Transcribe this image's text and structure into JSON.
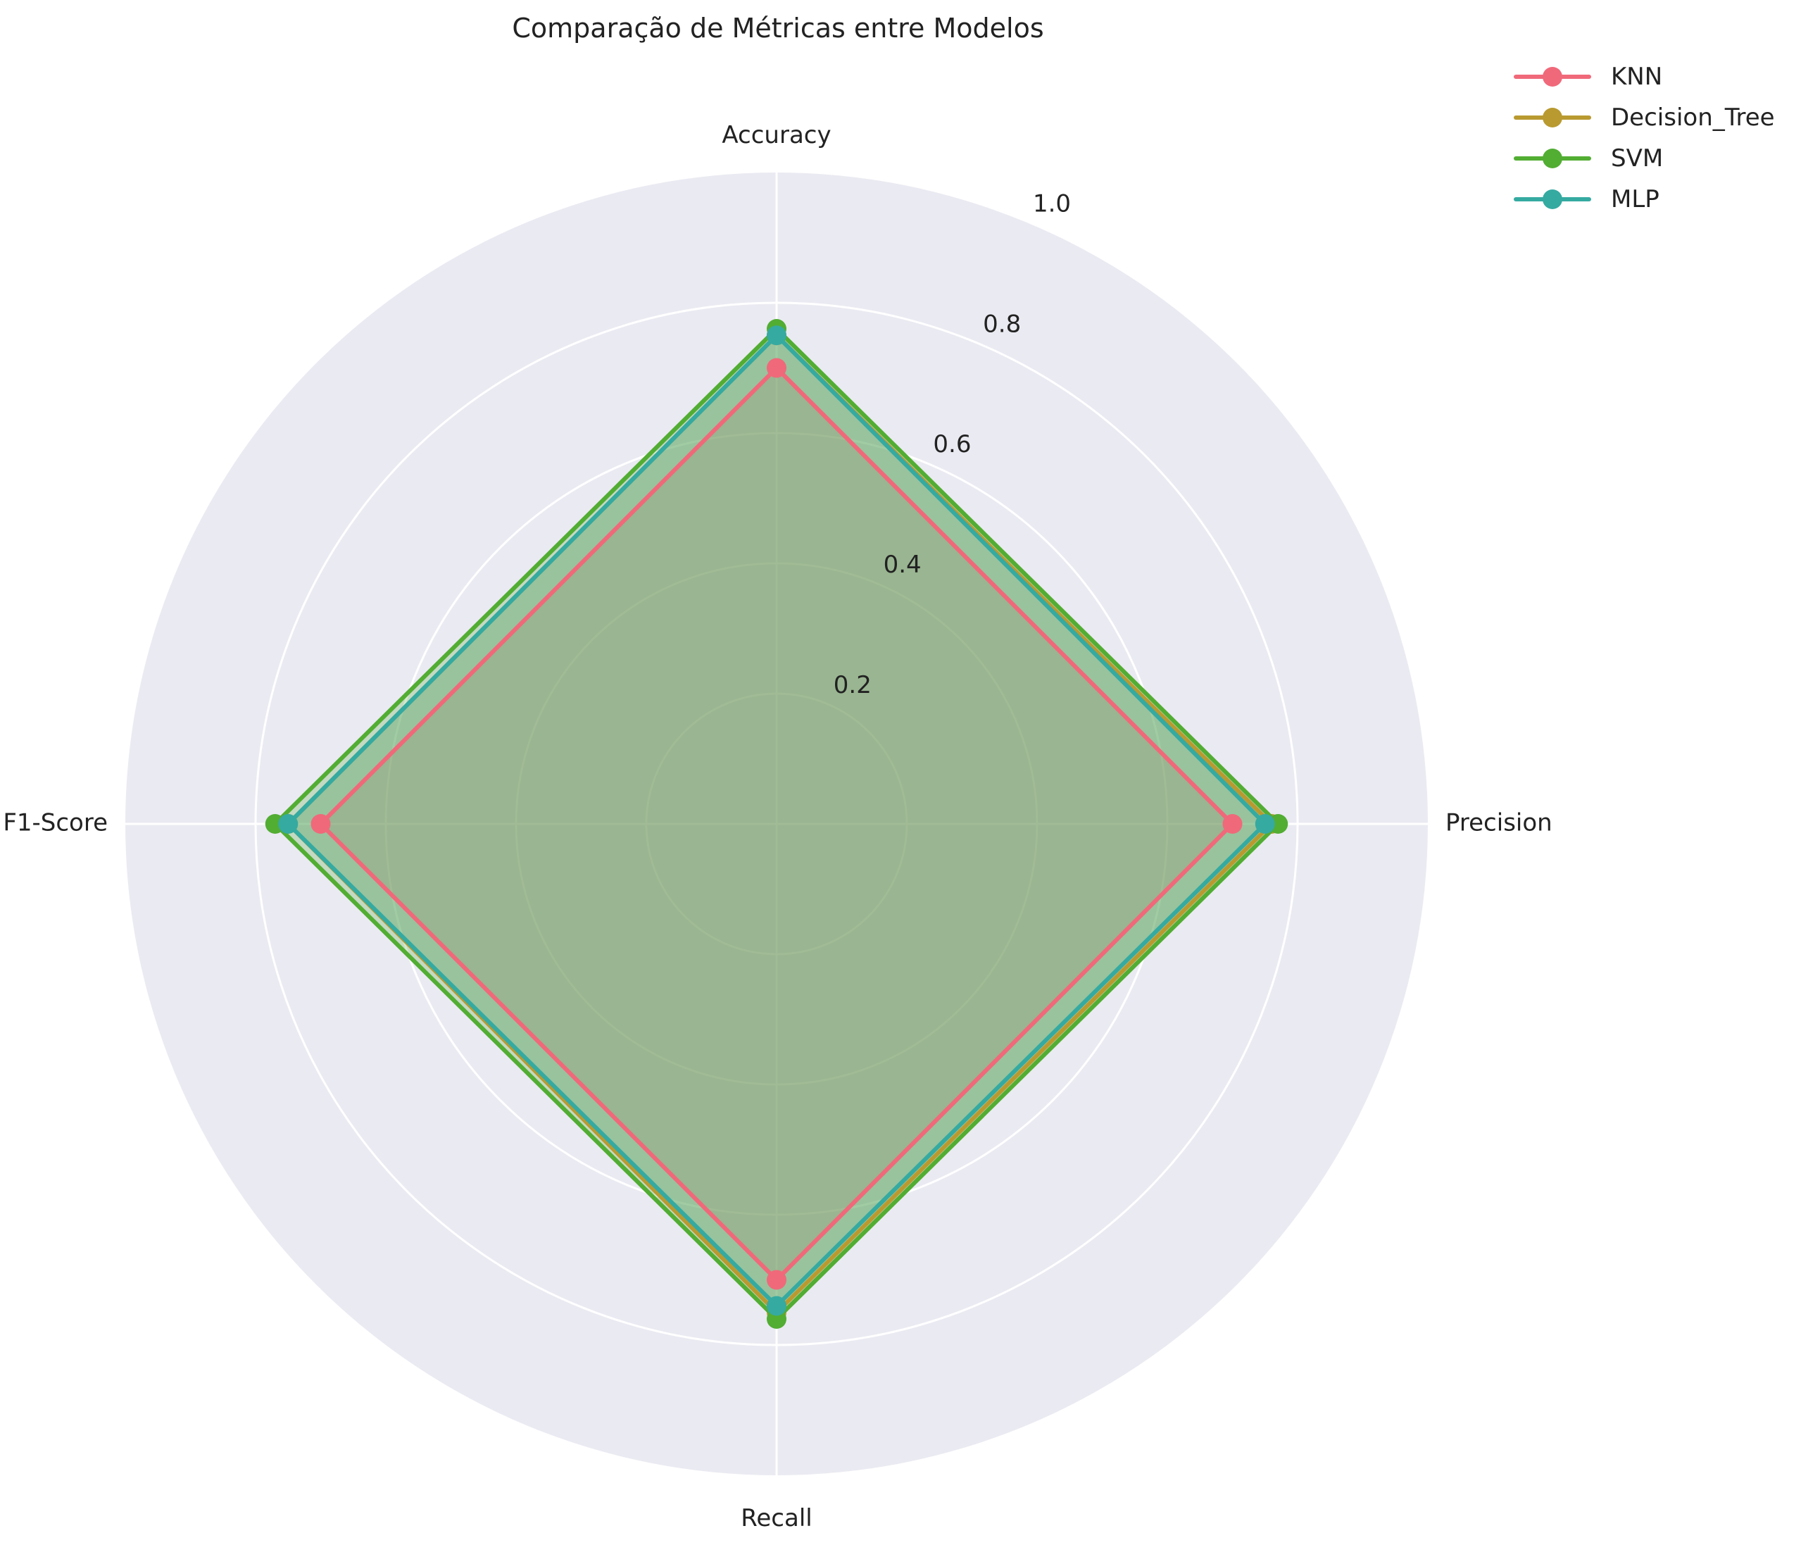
{
  "chart_data": {
    "type": "radar",
    "title": "Comparação de Métricas entre Modelos",
    "axes": [
      "Accuracy",
      "Precision",
      "Recall",
      "F1-Score"
    ],
    "radial_ticks": [
      "0.2",
      "0.4",
      "0.6",
      "0.8",
      "1.0"
    ],
    "rlim": [
      0,
      1.0
    ],
    "grid": true,
    "legend_position": "top-right",
    "series": [
      {
        "name": "KNN",
        "color": "#f0697a",
        "values": [
          0.7,
          0.7,
          0.7,
          0.7
        ]
      },
      {
        "name": "Decision_Tree",
        "color": "#b99a30",
        "values": [
          0.75,
          0.76,
          0.75,
          0.75
        ]
      },
      {
        "name": "SVM",
        "color": "#52ad33",
        "values": [
          0.76,
          0.77,
          0.76,
          0.77
        ]
      },
      {
        "name": "MLP",
        "color": "#35aaa1",
        "values": [
          0.75,
          0.75,
          0.74,
          0.75
        ]
      }
    ]
  }
}
